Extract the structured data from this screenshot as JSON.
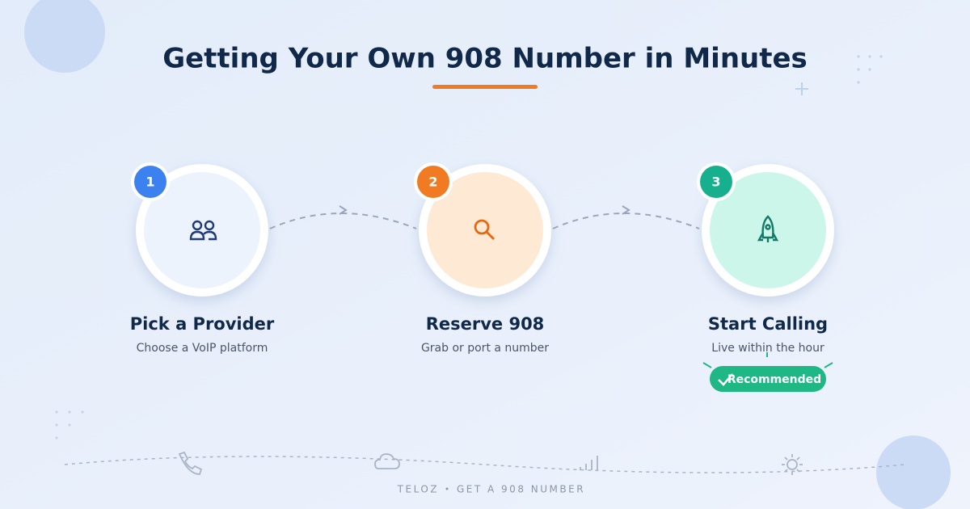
{
  "header": {
    "title": "Getting Your Own 908 Number in Minutes"
  },
  "steps": [
    {
      "number": "1",
      "title": "Pick a Provider",
      "subtitle": "Choose a VoIP platform"
    },
    {
      "number": "2",
      "title": "Reserve 908",
      "subtitle": "Grab or port a number"
    },
    {
      "number": "3",
      "title": "Start Calling",
      "subtitle": "Live within the hour",
      "badge": "Recommended"
    }
  ],
  "footer": {
    "brand": "TELOZ",
    "tagline": "GET A 908 NUMBER"
  }
}
